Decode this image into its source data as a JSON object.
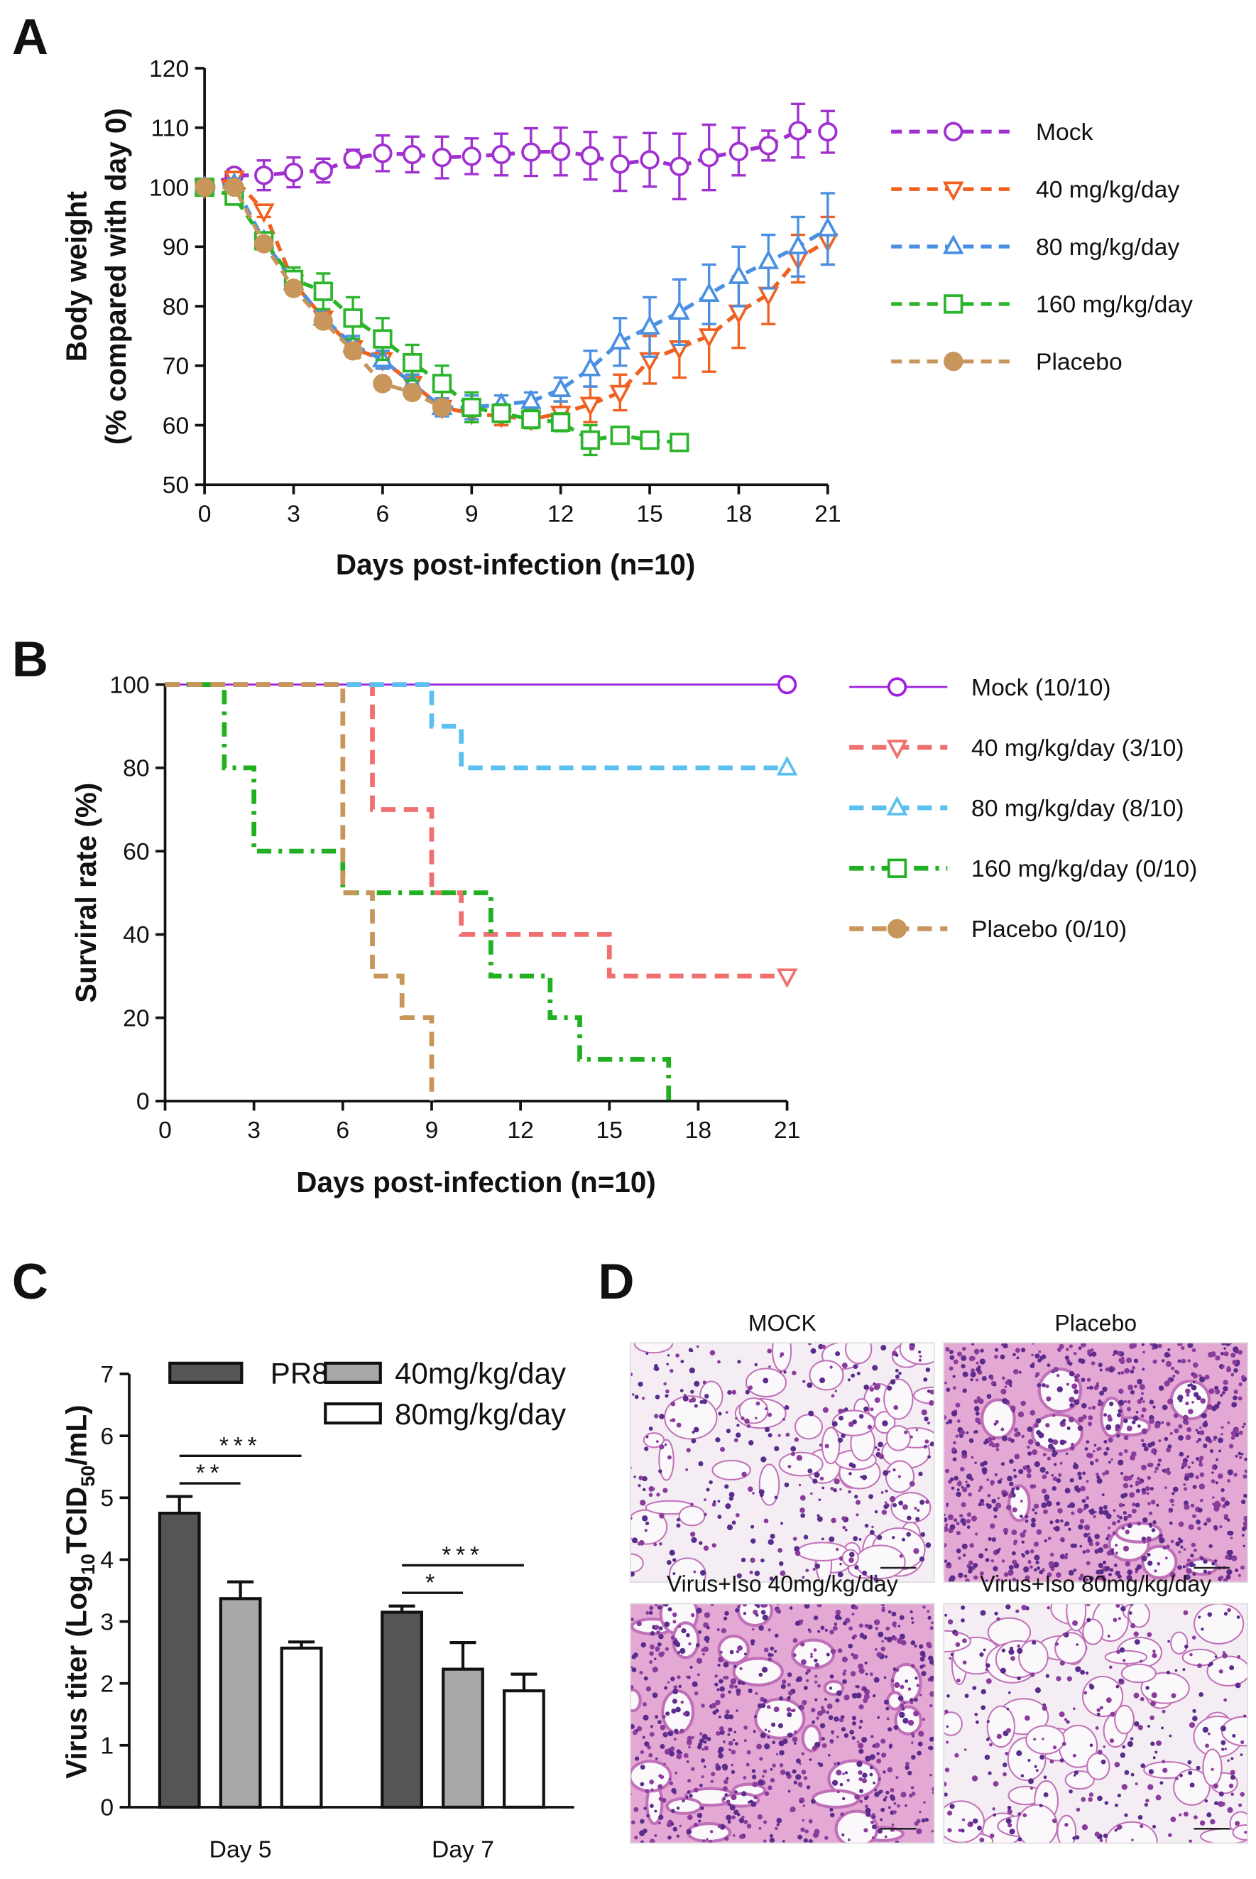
{
  "chart_data": [
    {
      "type": "line",
      "panel_label": "A",
      "xlabel": "Days post-infection (n=10)",
      "ylabel": [
        "Body weight",
        "(% compared with day 0)"
      ],
      "x": [
        0,
        1,
        2,
        3,
        4,
        5,
        6,
        7,
        8,
        9,
        10,
        11,
        12,
        13,
        14,
        15,
        16,
        17,
        18,
        19,
        20,
        21
      ],
      "xlim": [
        0,
        21
      ],
      "xticks": [
        0,
        3,
        6,
        9,
        12,
        15,
        18,
        21
      ],
      "ylim": [
        50,
        120
      ],
      "yticks": [
        50,
        60,
        70,
        80,
        90,
        100,
        110,
        120
      ],
      "series": [
        {
          "name": "Mock",
          "color": "#a030d0",
          "marker": "circle",
          "values": [
            100,
            102,
            102,
            102.5,
            102.8,
            104.8,
            105.7,
            105.5,
            105,
            105.2,
            105.5,
            105.9,
            106,
            105.3,
            103.9,
            104.6,
            103.5,
            105,
            106,
            107,
            109.5,
            109.3
          ],
          "errors": [
            0,
            1,
            2.5,
            2.5,
            2,
            1.5,
            3,
            3,
            3.5,
            3,
            3.5,
            4,
            4,
            4,
            4.5,
            4.5,
            5.5,
            5.5,
            4,
            2.5,
            4.5,
            3.5
          ]
        },
        {
          "name": "40 mg/kg/day",
          "color": "#f06020",
          "marker": "triangle-down",
          "values": [
            100,
            101.5,
            96,
            84,
            78,
            73,
            71,
            67,
            63,
            62,
            61.5,
            61,
            62,
            63.5,
            65.5,
            71,
            73,
            75,
            79,
            82,
            88,
            91
          ],
          "errors": [
            0,
            1,
            1,
            1.5,
            1.5,
            1.5,
            1.5,
            1.5,
            1.5,
            1.5,
            1.5,
            1.5,
            2,
            3,
            3,
            4,
            5,
            6,
            6,
            5,
            4,
            4
          ]
        },
        {
          "name": "80 mg/kg/day",
          "color": "#4a90e2",
          "marker": "triangle-up",
          "values": [
            100,
            100.5,
            91,
            84,
            78,
            73.5,
            71,
            67,
            63,
            63,
            63.5,
            64,
            66,
            69.5,
            74,
            76.5,
            79,
            82,
            85,
            87.5,
            90,
            93
          ],
          "errors": [
            0,
            1,
            1,
            1.5,
            1.5,
            1.5,
            1.5,
            1.5,
            1.5,
            2,
            1.5,
            1.5,
            2,
            3,
            4,
            5,
            5.5,
            5,
            5,
            4.5,
            5,
            6
          ]
        },
        {
          "name": "160 mg/kg/day",
          "color": "#2bb52b",
          "marker": "square",
          "values": [
            100,
            98.5,
            91,
            84.5,
            82.5,
            78,
            74.5,
            70.5,
            67,
            63,
            62,
            61,
            60.5,
            57.5,
            58.3,
            57.5,
            57.1,
            null,
            null,
            null,
            null,
            null
          ],
          "errors": [
            0,
            1,
            1,
            2,
            3,
            3.5,
            3.5,
            3,
            3,
            2.5,
            1.5,
            1.5,
            1.5,
            2.5,
            1,
            1,
            1,
            null,
            null,
            null,
            null,
            null
          ]
        },
        {
          "name": "Placebo",
          "color": "#c8955a",
          "marker": "circle-filled",
          "values": [
            100,
            100,
            90.5,
            83,
            77.5,
            72.5,
            67,
            65.5,
            63,
            null,
            null,
            null,
            null,
            null,
            null,
            null,
            null,
            null,
            null,
            null,
            null,
            null
          ],
          "errors": [
            0,
            0.5,
            1,
            1,
            1,
            1,
            1,
            1,
            1,
            null,
            null,
            null,
            null,
            null,
            null,
            null,
            null,
            null,
            null,
            null,
            null,
            null
          ]
        }
      ]
    },
    {
      "type": "step",
      "panel_label": "B",
      "xlabel": "Days post-infection (n=10)",
      "ylabel": "Surviral rate (%)",
      "xlim": [
        0,
        21
      ],
      "xticks": [
        0,
        3,
        6,
        9,
        12,
        15,
        18,
        21
      ],
      "ylim": [
        0,
        100
      ],
      "yticks": [
        0,
        20,
        40,
        60,
        80,
        100
      ],
      "series": [
        {
          "name": "Mock (10/10)",
          "color": "#a020e0",
          "marker": "circle",
          "line_style": "solid",
          "end_marker": true,
          "x": [
            0,
            21
          ],
          "values": [
            100,
            100
          ]
        },
        {
          "name": "40 mg/kg/day (3/10)",
          "color": "#f07070",
          "marker": "triangle-down",
          "line_style": "dashed",
          "end_marker": true,
          "x": [
            0,
            7,
            9,
            10,
            15,
            21
          ],
          "values": [
            100,
            70,
            50,
            40,
            30,
            30
          ]
        },
        {
          "name": "80 mg/kg/day (8/10)",
          "color": "#5bc0f0",
          "marker": "triangle-up",
          "line_style": "dashed",
          "end_marker": true,
          "x": [
            0,
            9,
            10,
            21
          ],
          "values": [
            100,
            90,
            80,
            80
          ]
        },
        {
          "name": "160 mg/kg/day (0/10)",
          "color": "#20b020",
          "marker": "square",
          "line_style": "dashdot",
          "end_marker": false,
          "x": [
            0,
            2,
            3,
            6,
            11,
            13,
            14,
            17
          ],
          "values": [
            100,
            80,
            60,
            50,
            30,
            20,
            10,
            0
          ]
        },
        {
          "name": "Placebo (0/10)",
          "color": "#c8955a",
          "marker": "circle-filled",
          "line_style": "dashed",
          "end_marker": false,
          "x": [
            0,
            6,
            7,
            8,
            9
          ],
          "values": [
            100,
            50,
            30,
            20,
            0
          ]
        }
      ]
    },
    {
      "type": "bar",
      "panel_label": "C",
      "ylabel": [
        "Virus titer (Log",
        "10",
        "TCID",
        "50",
        "/mL)"
      ],
      "categories": [
        "Day 5",
        "Day 7"
      ],
      "ylim": [
        0,
        7
      ],
      "yticks": [
        0,
        1,
        2,
        3,
        4,
        5,
        6,
        7
      ],
      "series": [
        {
          "name": "PR8",
          "color": "#555555",
          "values": [
            4.75,
            3.15
          ],
          "errors": [
            0.27,
            0.1
          ]
        },
        {
          "name": "40mg/kg/day",
          "color": "#a8a8a8",
          "values": [
            3.37,
            2.23
          ],
          "errors": [
            0.27,
            0.43
          ]
        },
        {
          "name": "80mg/kg/day",
          "color": "#ffffff",
          "values": [
            2.57,
            1.88
          ],
          "errors": [
            0.1,
            0.27
          ]
        }
      ],
      "annotations": [
        {
          "label": "***",
          "category": 0,
          "from": 0,
          "to": 2
        },
        {
          "label": "**",
          "category": 0,
          "from": 0,
          "to": 1
        },
        {
          "label": "***",
          "category": 1,
          "from": 0,
          "to": 2
        },
        {
          "label": "*",
          "category": 1,
          "from": 0,
          "to": 1
        }
      ]
    }
  ],
  "panel_d": {
    "label": "D",
    "images": [
      {
        "title": "MOCK"
      },
      {
        "title": "Placebo"
      },
      {
        "title": "Virus+Iso 40mg/kg/day"
      },
      {
        "title": "Virus+Iso 80mg/kg/day"
      }
    ]
  }
}
